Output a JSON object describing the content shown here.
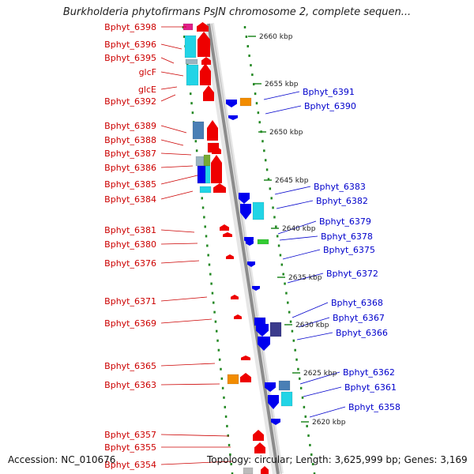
{
  "title": "Burkholderia phytofirmans PsJN chromosome 2, complete sequen...",
  "footer": {
    "accession": "Accession: NC_010676",
    "info": "Topology: circular; Length: 3,625,999 bp; Genes: 3,169"
  },
  "colors": {
    "left_label": "#cc0000",
    "right_label": "#0000cc",
    "ruler": "#228822",
    "backbone": "#9a9a9a"
  },
  "kbp_ticks": [
    "2660 kbp",
    "2655 kbp",
    "2650 kbp",
    "2645 kbp",
    "2640 kbp",
    "2635 kbp",
    "2630 kbp",
    "2625 kbp",
    "2620 kbp"
  ],
  "left_labels": [
    "Bphyt_6398",
    "Bphyt_6396",
    "Bphyt_6395",
    "glcF",
    "glcE",
    "Bphyt_6392",
    "Bphyt_6389",
    "Bphyt_6388",
    "Bphyt_6387",
    "Bphyt_6386",
    "Bphyt_6385",
    "Bphyt_6384",
    "Bphyt_6381",
    "Bphyt_6380",
    "Bphyt_6376",
    "Bphyt_6371",
    "Bphyt_6369",
    "Bphyt_6365",
    "Bphyt_6363",
    "Bphyt_6357",
    "Bphyt_6355",
    "Bphyt_6354"
  ],
  "right_labels": [
    "Bphyt_6391",
    "Bphyt_6390",
    "Bphyt_6383",
    "Bphyt_6382",
    "Bphyt_6379",
    "Bphyt_6378",
    "Bphyt_6375",
    "Bphyt_6372",
    "Bphyt_6368",
    "Bphyt_6367",
    "Bphyt_6366",
    "Bphyt_6362",
    "Bphyt_6361",
    "Bphyt_6358"
  ]
}
